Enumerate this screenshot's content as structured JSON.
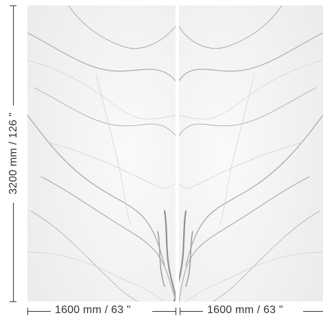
{
  "dimensions": {
    "height_label": "3200 mm / 126 \"",
    "width_label_left": "1600 mm / 63 \"",
    "width_label_right": "1600 mm / 63 \""
  },
  "colors": {
    "marble_base": "#f4f4f3",
    "vein_dark": "#9a9a9a",
    "vein_light": "#c9c9c9",
    "dimension_line": "#333333"
  }
}
